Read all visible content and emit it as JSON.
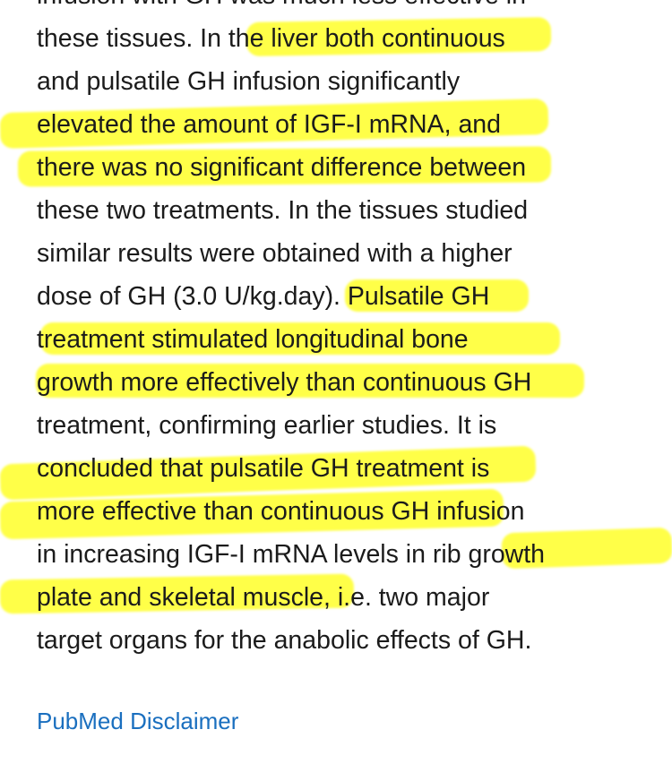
{
  "abstract": {
    "lines": [
      "infusion with GH was much less effective in",
      "these tissues. In the liver both continuous",
      "and pulsatile GH infusion significantly",
      "elevated the amount of IGF-I mRNA, and",
      "there was no significant difference between",
      "these two treatments. In the tissues studied",
      "similar results were obtained with a higher",
      "dose of GH (3.0 U/kg.day). Pulsatile GH",
      "treatment stimulated longitudinal bone",
      "growth more effectively than continuous GH",
      "treatment, confirming earlier studies. It is",
      "concluded that pulsatile GH treatment is",
      "more effective than continuous GH infusion",
      "in increasing IGF-I mRNA levels in rib growth",
      "plate and skeletal muscle, i.e. two major",
      "target organs for the anabolic effects of GH."
    ]
  },
  "disclaimer_link": "PubMed Disclaimer",
  "colors": {
    "highlight": "#ffff33",
    "link": "#1a6fbf",
    "text": "#1b1b1b"
  }
}
